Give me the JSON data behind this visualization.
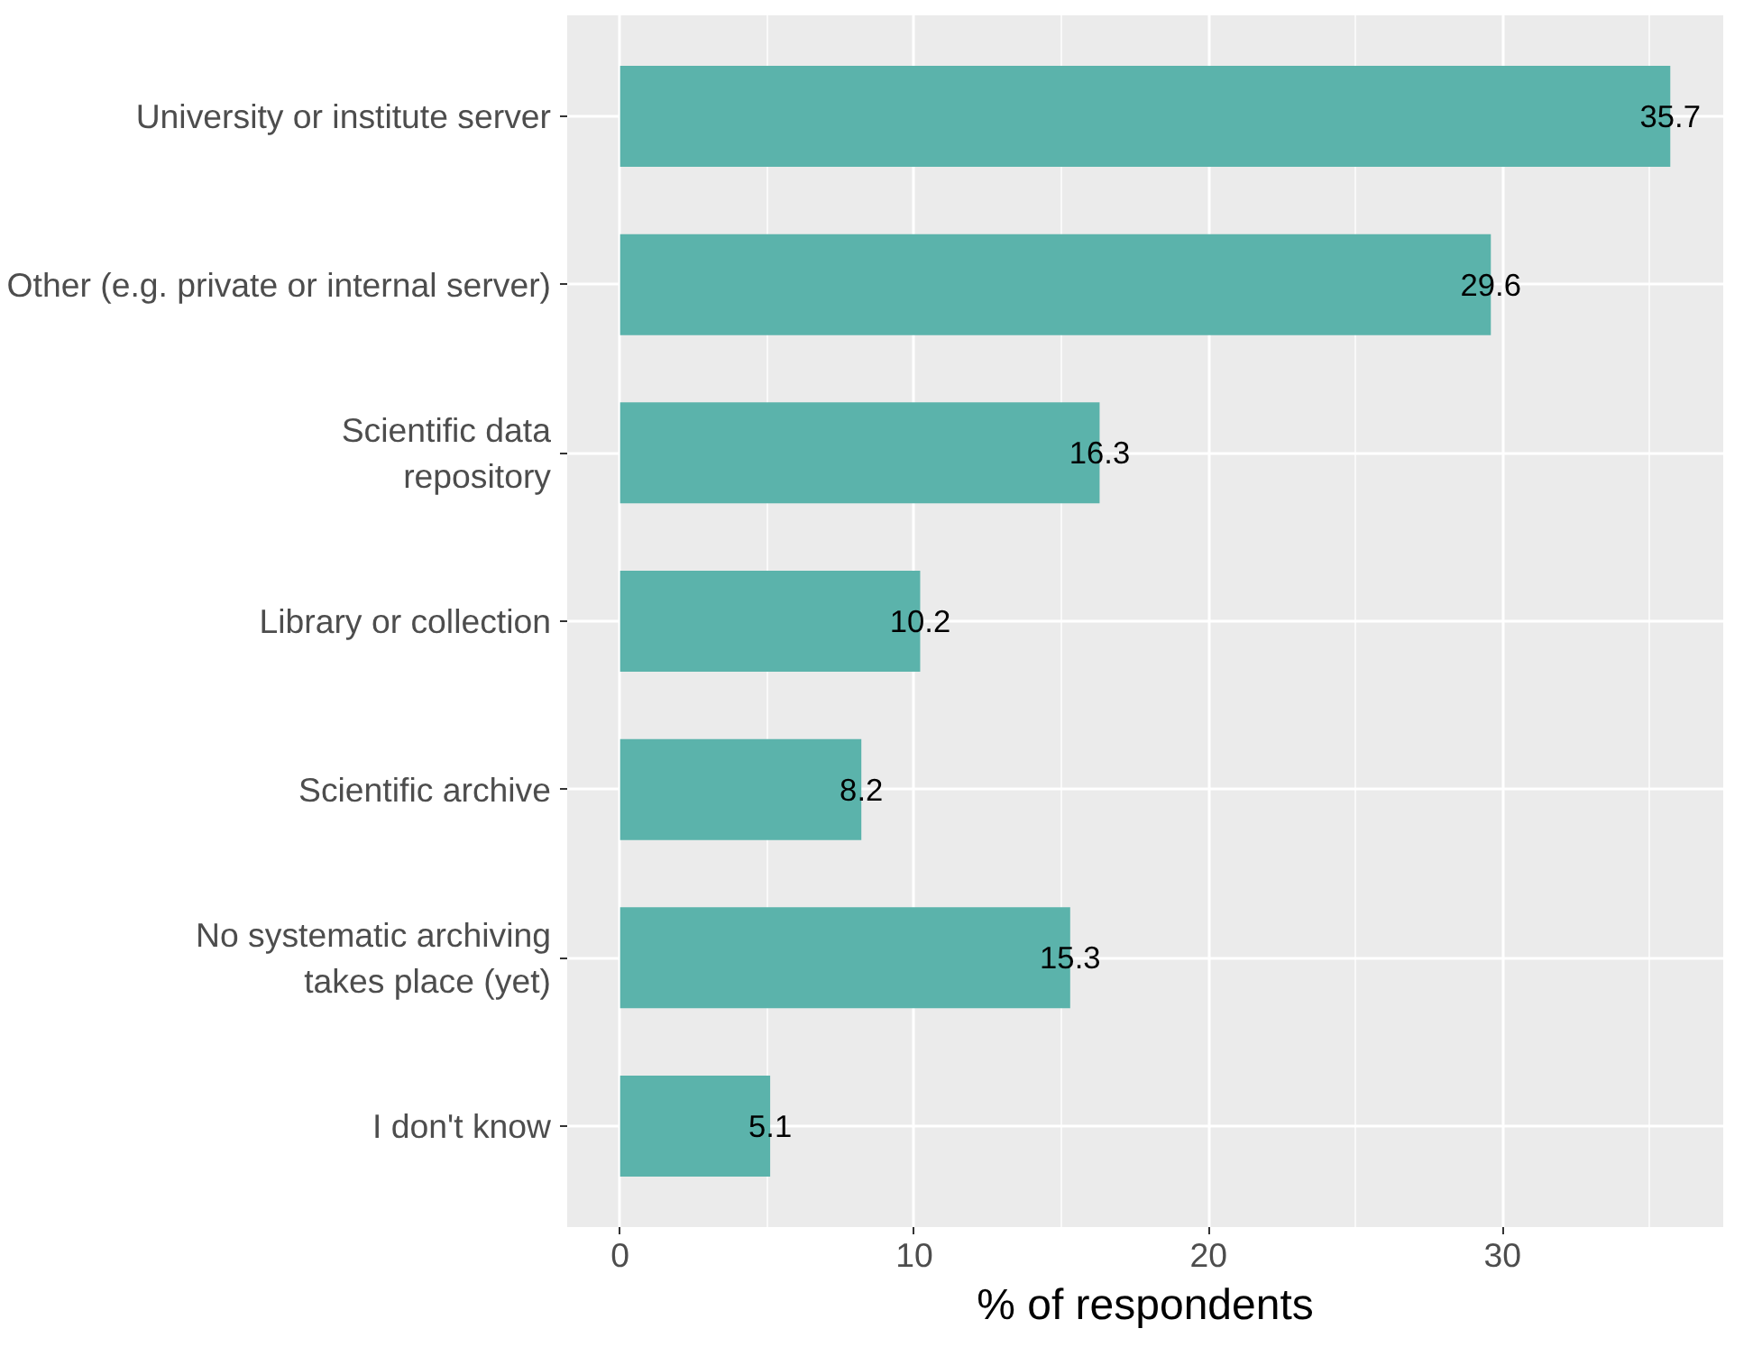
{
  "chart_data": {
    "type": "bar",
    "orientation": "horizontal",
    "xlabel": "% of respondents",
    "categories": [
      "University or institute server",
      "Other (e.g. private or internal server)",
      "Scientific data\nrepository",
      "Library or collection",
      "Scientific archive",
      "No systematic archiving\ntakes place (yet)",
      "I don't know"
    ],
    "values": [
      35.7,
      29.6,
      16.3,
      10.2,
      8.2,
      15.3,
      5.1
    ],
    "color": "#5bb3ab",
    "data_labels": true,
    "grid": true,
    "xlim": [
      -1.8,
      37.5
    ],
    "xticks": [
      0,
      10,
      20,
      30
    ]
  }
}
